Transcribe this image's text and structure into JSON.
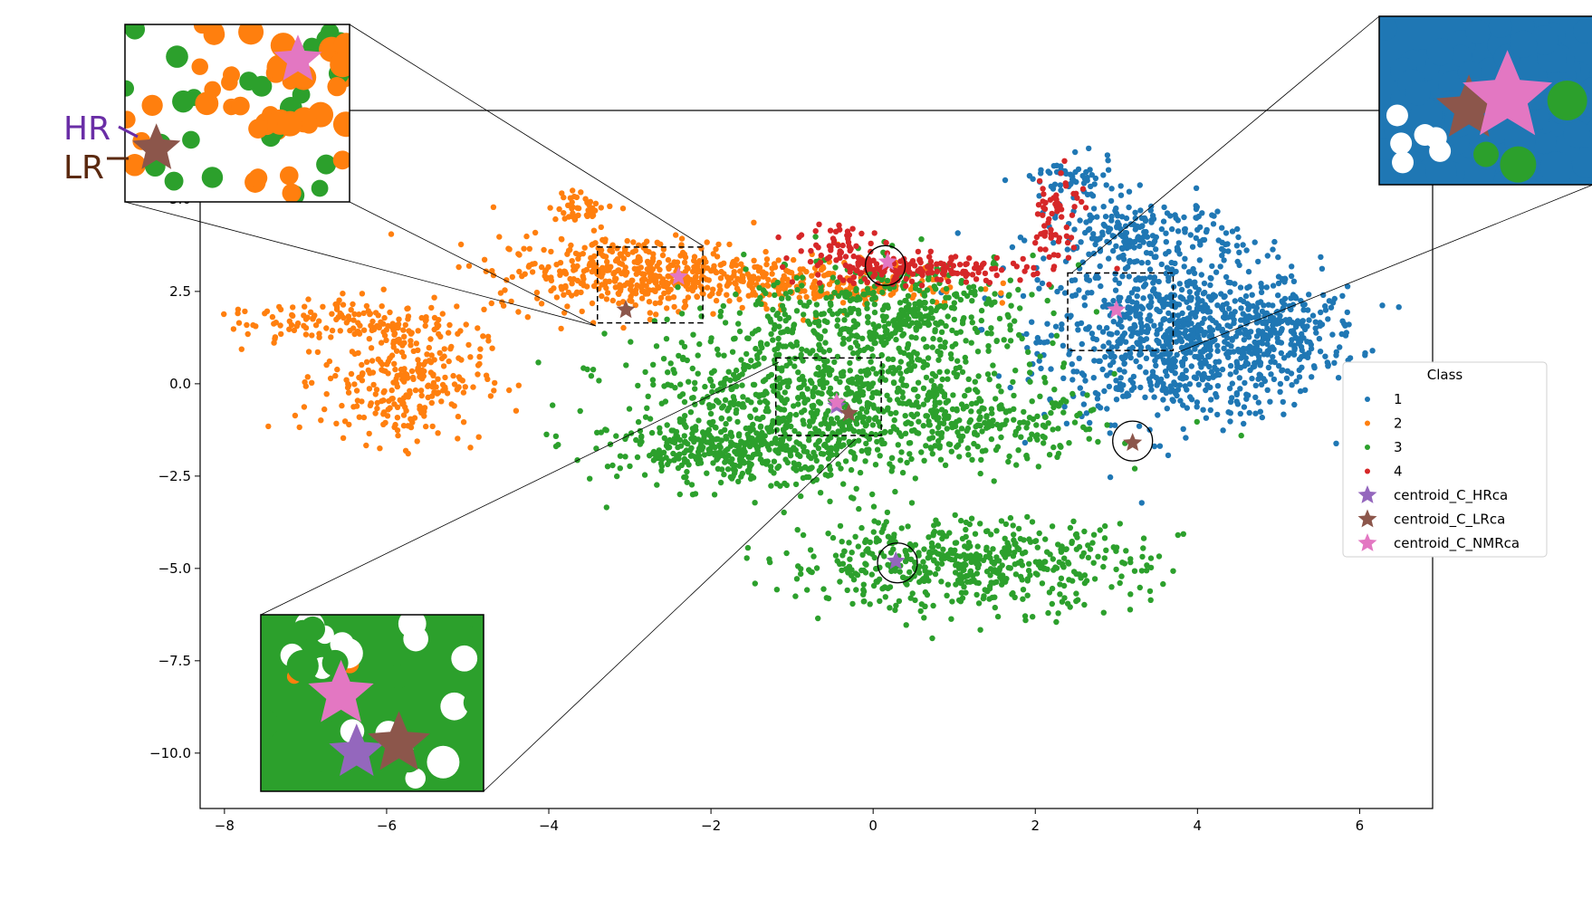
{
  "chart_data": {
    "type": "scatter",
    "title": "",
    "xlabel": "",
    "ylabel": "",
    "xlim": [
      -8.3,
      6.9
    ],
    "ylim": [
      -11.5,
      7.4
    ],
    "x_ticks": [
      -8,
      -6,
      -4,
      -2,
      0,
      2,
      4,
      6
    ],
    "x_tick_labels": [
      "−8",
      "−6",
      "−4",
      "−2",
      "0",
      "2",
      "4",
      "6"
    ],
    "y_ticks": [
      5.0,
      2.5,
      0.0,
      -2.5,
      -5.0,
      -7.5,
      -10.0
    ],
    "y_tick_labels": [
      "5.0",
      "2.5",
      "0.0",
      "−2.5",
      "−5.0",
      "−7.5",
      "−10.0"
    ],
    "grid": false,
    "legend": {
      "title": "Class",
      "placement": "right",
      "entries": [
        "1",
        "2",
        "3",
        "4",
        "centroid_C_HRca",
        "centroid_C_LRca",
        "centroid_C_NMRca"
      ]
    },
    "series": [
      {
        "name": "1",
        "color": "#1f77b4",
        "clusters": [
          {
            "cx": 3.8,
            "cy": 1.2,
            "sx": 0.85,
            "sy": 1.1,
            "n": 900
          },
          {
            "cx": 5.1,
            "cy": 1.4,
            "sx": 0.45,
            "sy": 0.6,
            "n": 160
          },
          {
            "cx": 3.3,
            "cy": 4.0,
            "sx": 0.6,
            "sy": 0.5,
            "n": 220
          },
          {
            "cx": 2.4,
            "cy": 5.5,
            "sx": 0.3,
            "sy": 0.3,
            "n": 60
          }
        ]
      },
      {
        "name": "2",
        "color": "#ff7f0e",
        "clusters": [
          {
            "cx": -5.8,
            "cy": 0.2,
            "sx": 0.5,
            "sy": 0.9,
            "n": 300
          },
          {
            "cx": -6.6,
            "cy": 1.7,
            "sx": 0.7,
            "sy": 0.35,
            "n": 120
          },
          {
            "cx": -2.9,
            "cy": 3.0,
            "sx": 0.9,
            "sy": 0.5,
            "n": 450
          },
          {
            "cx": -0.8,
            "cy": 2.7,
            "sx": 1.0,
            "sy": 0.3,
            "n": 250
          },
          {
            "cx": -3.6,
            "cy": 4.8,
            "sx": 0.2,
            "sy": 0.2,
            "n": 40
          }
        ]
      },
      {
        "name": "3",
        "color": "#2ca02c",
        "clusters": [
          {
            "cx": -0.6,
            "cy": -0.4,
            "sx": 1.2,
            "sy": 1.1,
            "n": 900
          },
          {
            "cx": -1.6,
            "cy": -1.8,
            "sx": 0.8,
            "sy": 0.4,
            "n": 350
          },
          {
            "cx": 1.1,
            "cy": -4.9,
            "sx": 1.1,
            "sy": 0.6,
            "n": 550
          },
          {
            "cx": 0.3,
            "cy": 2.0,
            "sx": 0.9,
            "sy": 0.7,
            "n": 400
          },
          {
            "cx": 1.5,
            "cy": -1.2,
            "sx": 0.7,
            "sy": 0.5,
            "n": 150
          }
        ]
      },
      {
        "name": "4",
        "color": "#d62728",
        "clusters": [
          {
            "cx": 0.5,
            "cy": 3.1,
            "sx": 0.7,
            "sy": 0.2,
            "n": 180
          },
          {
            "cx": -0.4,
            "cy": 3.9,
            "sx": 0.25,
            "sy": 0.25,
            "n": 40
          },
          {
            "cx": 2.3,
            "cy": 5.0,
            "sx": 0.15,
            "sy": 0.4,
            "n": 40
          },
          {
            "cx": 2.2,
            "cy": 3.8,
            "sx": 0.15,
            "sy": 0.35,
            "n": 25
          }
        ]
      }
    ],
    "centroids": [
      {
        "name": "centroid_C_HRca",
        "color": "#9467bd",
        "points": [
          {
            "x": 0.28,
            "y": -4.8
          },
          {
            "x": -0.45,
            "y": -0.6
          }
        ]
      },
      {
        "name": "centroid_C_LRca",
        "color": "#8c564b",
        "points": [
          {
            "x": -3.05,
            "y": 2.0
          },
          {
            "x": 3.2,
            "y": -1.6
          },
          {
            "x": -0.3,
            "y": -0.8
          }
        ]
      },
      {
        "name": "centroid_C_NMRca",
        "color": "#e377c2",
        "points": [
          {
            "x": -2.4,
            "y": 2.9
          },
          {
            "x": 0.18,
            "y": 3.3
          },
          {
            "x": 3.0,
            "y": 2.0
          },
          {
            "x": -0.45,
            "y": -0.5
          }
        ]
      }
    ],
    "circled_centroids": [
      {
        "x": 0.15,
        "y": 3.2
      },
      {
        "x": 3.2,
        "y": -1.55
      },
      {
        "x": 0.3,
        "y": -4.85
      }
    ],
    "zoom_boxes": [
      {
        "x0": -3.4,
        "x1": -2.1,
        "y0": 1.65,
        "y1": 3.7
      },
      {
        "x0": -1.2,
        "x1": 0.1,
        "y0": -1.4,
        "y1": 0.7
      },
      {
        "x0": 2.4,
        "x1": 3.7,
        "y0": 0.9,
        "y1": 3.0
      }
    ],
    "annotations": [
      "HR",
      "LR"
    ]
  },
  "colors": {
    "class_1": "#1f77b4",
    "class_2": "#ff7f0e",
    "class_3": "#2ca02c",
    "class_4": "#d62728",
    "hr": "#9467bd",
    "lr": "#8c564b",
    "nmr": "#e377c2",
    "label_hr": "#6a2ea6",
    "label_lr": "#5b2a10"
  }
}
